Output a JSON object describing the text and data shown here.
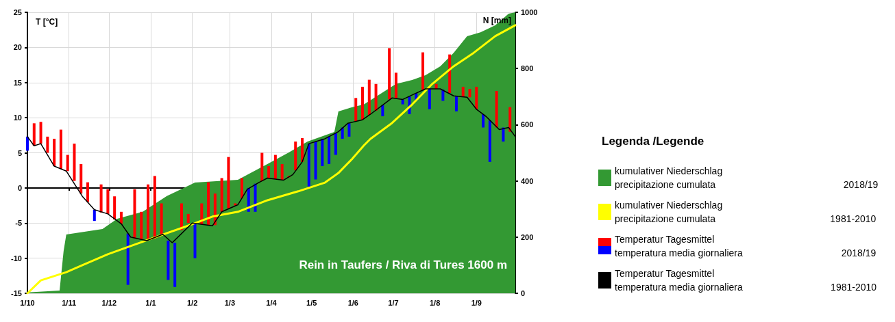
{
  "chart_data": {
    "type": "line",
    "ylabel": "T [°C]",
    "y2label": "N [mm]",
    "legend_title": "Legenda /Legende",
    "annotations": [
      "Rein in Taufers / Riva di Tures 1600 m"
    ],
    "grid": true,
    "legend": "right",
    "xlim": [
      "2018-10-01",
      "2019-09-30"
    ],
    "xticks": [
      {
        "value": "2018-10-01",
        "label": "1/10"
      },
      {
        "value": "2018-11-01",
        "label": "1/11"
      },
      {
        "value": "2018-12-01",
        "label": "1/12"
      },
      {
        "value": "2019-01-01",
        "label": "1/1"
      },
      {
        "value": "2019-02-01",
        "label": "1/2"
      },
      {
        "value": "2019-03-01",
        "label": "1/3"
      },
      {
        "value": "2019-04-01",
        "label": "1/4"
      },
      {
        "value": "2019-05-01",
        "label": "1/5"
      },
      {
        "value": "2019-06-01",
        "label": "1/6"
      },
      {
        "value": "2019-07-01",
        "label": "1/7"
      },
      {
        "value": "2019-08-01",
        "label": "1/8"
      },
      {
        "value": "2019-09-01",
        "label": "1/9"
      }
    ],
    "ylim": [
      -15,
      25
    ],
    "yticks": [
      -15,
      -10,
      -5,
      0,
      5,
      10,
      15,
      20,
      25
    ],
    "y2lim": [
      0,
      1000
    ],
    "y2ticks": [
      0,
      200,
      400,
      600,
      800,
      1000
    ],
    "series": [
      {
        "name": "kumulativer Niederschlag\nprecipitazione cumulata\n2018/19",
        "type": "area",
        "axis": "y2",
        "color": "#339933",
        "x": [
          "2018-10-01",
          "2018-10-25",
          "2018-10-28",
          "2018-10-30",
          "2018-11-26",
          "2018-12-07",
          "2018-12-26",
          "2019-01-13",
          "2019-02-03",
          "2019-03-07",
          "2019-03-29",
          "2019-04-14",
          "2019-04-28",
          "2019-05-18",
          "2019-05-21",
          "2019-05-31",
          "2019-06-09",
          "2019-07-03",
          "2019-07-15",
          "2019-07-25",
          "2019-08-05",
          "2019-08-15",
          "2019-08-25",
          "2019-09-04",
          "2019-09-15",
          "2019-09-25",
          "2019-09-30"
        ],
        "values": [
          3,
          10,
          150,
          209,
          229,
          265,
          290,
          346,
          394,
          404,
          460,
          501,
          540,
          574,
          647,
          662,
          672,
          745,
          759,
          776,
          808,
          856,
          915,
          929,
          954,
          995,
          1000
        ]
      },
      {
        "name": "kumulativer Niederschlag\nprecipitazione cumulata\n1981-2010",
        "axis": "y2",
        "color": "#ffff00",
        "x": [
          "2018-10-01",
          "2018-10-11",
          "2018-10-30",
          "2018-11-11",
          "2018-11-30",
          "2018-12-17",
          "2019-01-10",
          "2019-02-01",
          "2019-02-16",
          "2019-03-07",
          "2019-03-29",
          "2019-04-21",
          "2019-05-11",
          "2019-05-21",
          "2019-05-31",
          "2019-06-09",
          "2019-06-14",
          "2019-06-30",
          "2019-07-15",
          "2019-07-30",
          "2019-08-15",
          "2019-08-30",
          "2019-09-15",
          "2019-09-30"
        ],
        "values": [
          0,
          46,
          75,
          100,
          139,
          168,
          209,
          246,
          273,
          290,
          331,
          363,
          394,
          428,
          477,
          526,
          550,
          606,
          672,
          745,
          808,
          856,
          915,
          954
        ]
      },
      {
        "name": "Temperatur Tagesmittel\ntemperatura media giornaliera\n2018/19",
        "type": "bar",
        "x": [
          "2018-10-01",
          "2018-10-06",
          "2018-10-11",
          "2018-10-16",
          "2018-10-21",
          "2018-10-26",
          "2018-10-31",
          "2018-11-05",
          "2018-11-10",
          "2018-11-15",
          "2018-11-20",
          "2018-11-25",
          "2018-11-30",
          "2018-12-05",
          "2018-12-10",
          "2018-12-15",
          "2018-12-20",
          "2018-12-25",
          "2018-12-30",
          "2019-01-04",
          "2019-01-09",
          "2019-01-14",
          "2019-01-19",
          "2019-01-24",
          "2019-01-29",
          "2019-02-03",
          "2019-02-08",
          "2019-02-13",
          "2019-02-18",
          "2019-02-23",
          "2019-02-28",
          "2019-03-05",
          "2019-03-10",
          "2019-03-15",
          "2019-03-20",
          "2019-03-25",
          "2019-03-30",
          "2019-04-04",
          "2019-04-09",
          "2019-04-14",
          "2019-04-19",
          "2019-04-24",
          "2019-04-29",
          "2019-05-04",
          "2019-05-09",
          "2019-05-14",
          "2019-05-19",
          "2019-05-24",
          "2019-05-29",
          "2019-06-03",
          "2019-06-08",
          "2019-06-13",
          "2019-06-18",
          "2019-06-23",
          "2019-06-28",
          "2019-07-03",
          "2019-07-08",
          "2019-07-13",
          "2019-07-18",
          "2019-07-23",
          "2019-07-28",
          "2019-08-02",
          "2019-08-07",
          "2019-08-12",
          "2019-08-17",
          "2019-08-22",
          "2019-08-27",
          "2019-09-01",
          "2019-09-06",
          "2019-09-11",
          "2019-09-16",
          "2019-09-21",
          "2019-09-26"
        ],
        "base": [
          7.3,
          6.0,
          6.3,
          5.0,
          3.1,
          2.7,
          2.4,
          1.0,
          -0.8,
          -2.0,
          -3.1,
          -3.5,
          -3.7,
          -4.5,
          -5.1,
          -6.5,
          -7.2,
          -7.4,
          -7.5,
          -7.2,
          -6.6,
          -7.5,
          -7.8,
          -6.0,
          -5.0,
          -5.0,
          -5.2,
          -5.3,
          -5.3,
          -3.4,
          -2.9,
          -2.5,
          -1.5,
          0.0,
          0.6,
          1.0,
          1.4,
          1.3,
          1.1,
          1.5,
          2.5,
          3.7,
          6.3,
          6.6,
          7.0,
          7.3,
          7.8,
          8.6,
          9.2,
          9.5,
          9.7,
          10.4,
          11.0,
          11.8,
          12.6,
          12.8,
          12.6,
          13.0,
          13.5,
          14.0,
          14.1,
          14.1,
          14.0,
          13.5,
          13.1,
          13.0,
          12.9,
          11.2,
          10.5,
          9.6,
          8.6,
          8.6,
          8.0
        ],
        "values": [
          -2.0,
          3.2,
          3.1,
          2.3,
          3.9,
          5.6,
          2.3,
          5.3,
          4.2,
          2.8,
          -1.6,
          4.0,
          3.5,
          3.3,
          1.7,
          -7.3,
          7.0,
          4.0,
          8.0,
          8.9,
          4.4,
          -5.6,
          -6.3,
          3.8,
          1.3,
          -5.0,
          3.0,
          6.1,
          4.5,
          4.8,
          7.3,
          0.3,
          2.9,
          -3.4,
          -4.0,
          4.0,
          1.7,
          3.4,
          2.3,
          0.2,
          4.1,
          3.4,
          -6.1,
          -5.4,
          -3.9,
          -3.9,
          -3.1,
          -1.6,
          -1.9,
          3.3,
          4.7,
          5.0,
          3.8,
          -1.6,
          7.3,
          3.6,
          -0.7,
          -2.5,
          -1.1,
          5.3,
          -2.9,
          0.7,
          -1.6,
          5.5,
          -2.2,
          1.4,
          1.2,
          3.2,
          -1.9,
          -5.9,
          5.2,
          -2.0,
          3.5
        ],
        "colors": [
          "#0000ff",
          "#ff0000",
          "#ff0000",
          "#ff0000",
          "#ff0000",
          "#ff0000",
          "#ff0000",
          "#ff0000",
          "#ff0000",
          "#ff0000",
          "#0000ff",
          "#ff0000",
          "#ff0000",
          "#ff0000",
          "#ff0000",
          "#0000ff",
          "#ff0000",
          "#ff0000",
          "#ff0000",
          "#ff0000",
          "#ff0000",
          "#0000ff",
          "#0000ff",
          "#ff0000",
          "#ff0000",
          "#0000ff",
          "#ff0000",
          "#ff0000",
          "#ff0000",
          "#ff0000",
          "#ff0000",
          "#ff0000",
          "#ff0000",
          "#0000ff",
          "#0000ff",
          "#ff0000",
          "#ff0000",
          "#ff0000",
          "#ff0000",
          "#ff0000",
          "#ff0000",
          "#ff0000",
          "#0000ff",
          "#0000ff",
          "#0000ff",
          "#0000ff",
          "#0000ff",
          "#0000ff",
          "#0000ff",
          "#ff0000",
          "#ff0000",
          "#ff0000",
          "#ff0000",
          "#0000ff",
          "#ff0000",
          "#ff0000",
          "#0000ff",
          "#0000ff",
          "#0000ff",
          "#ff0000",
          "#0000ff",
          "#ff0000",
          "#0000ff",
          "#ff0000",
          "#0000ff",
          "#ff0000",
          "#ff0000",
          "#ff0000",
          "#0000ff",
          "#0000ff",
          "#ff0000",
          "#0000ff",
          "#ff0000"
        ]
      },
      {
        "name": "Temperatur Tagesmittel\ntemperatura media giornaliera\n1981-2010",
        "color": "#000000",
        "x": [
          "2018-10-01",
          "2018-10-06",
          "2018-10-11",
          "2018-10-21",
          "2018-10-30",
          "2018-11-11",
          "2018-11-20",
          "2018-11-30",
          "2018-12-10",
          "2018-12-17",
          "2018-12-29",
          "2019-01-10",
          "2019-01-17",
          "2019-02-01",
          "2019-02-16",
          "2019-02-23",
          "2019-03-07",
          "2019-03-14",
          "2019-03-23",
          "2019-03-29",
          "2019-04-10",
          "2019-04-17",
          "2019-04-24",
          "2019-04-29",
          "2019-05-11",
          "2019-05-21",
          "2019-05-28",
          "2019-06-08",
          "2019-06-14",
          "2019-06-30",
          "2019-07-08",
          "2019-07-17",
          "2019-07-25",
          "2019-08-05",
          "2019-08-15",
          "2019-08-25",
          "2019-09-01",
          "2019-09-08",
          "2019-09-18",
          "2019-09-25",
          "2019-09-30"
        ],
        "values": [
          7.3,
          6.0,
          6.3,
          3.1,
          2.4,
          -1.2,
          -3.1,
          -3.7,
          -5.1,
          -7.0,
          -7.5,
          -6.6,
          -7.8,
          -5.0,
          -5.4,
          -3.4,
          -2.4,
          -0.2,
          0.8,
          1.4,
          1.1,
          1.9,
          3.7,
          6.3,
          7.0,
          8.0,
          9.2,
          9.7,
          10.5,
          12.8,
          12.6,
          13.4,
          14.1,
          14.1,
          13.1,
          12.9,
          11.2,
          10.2,
          8.3,
          8.6,
          7.3
        ]
      }
    ]
  }
}
